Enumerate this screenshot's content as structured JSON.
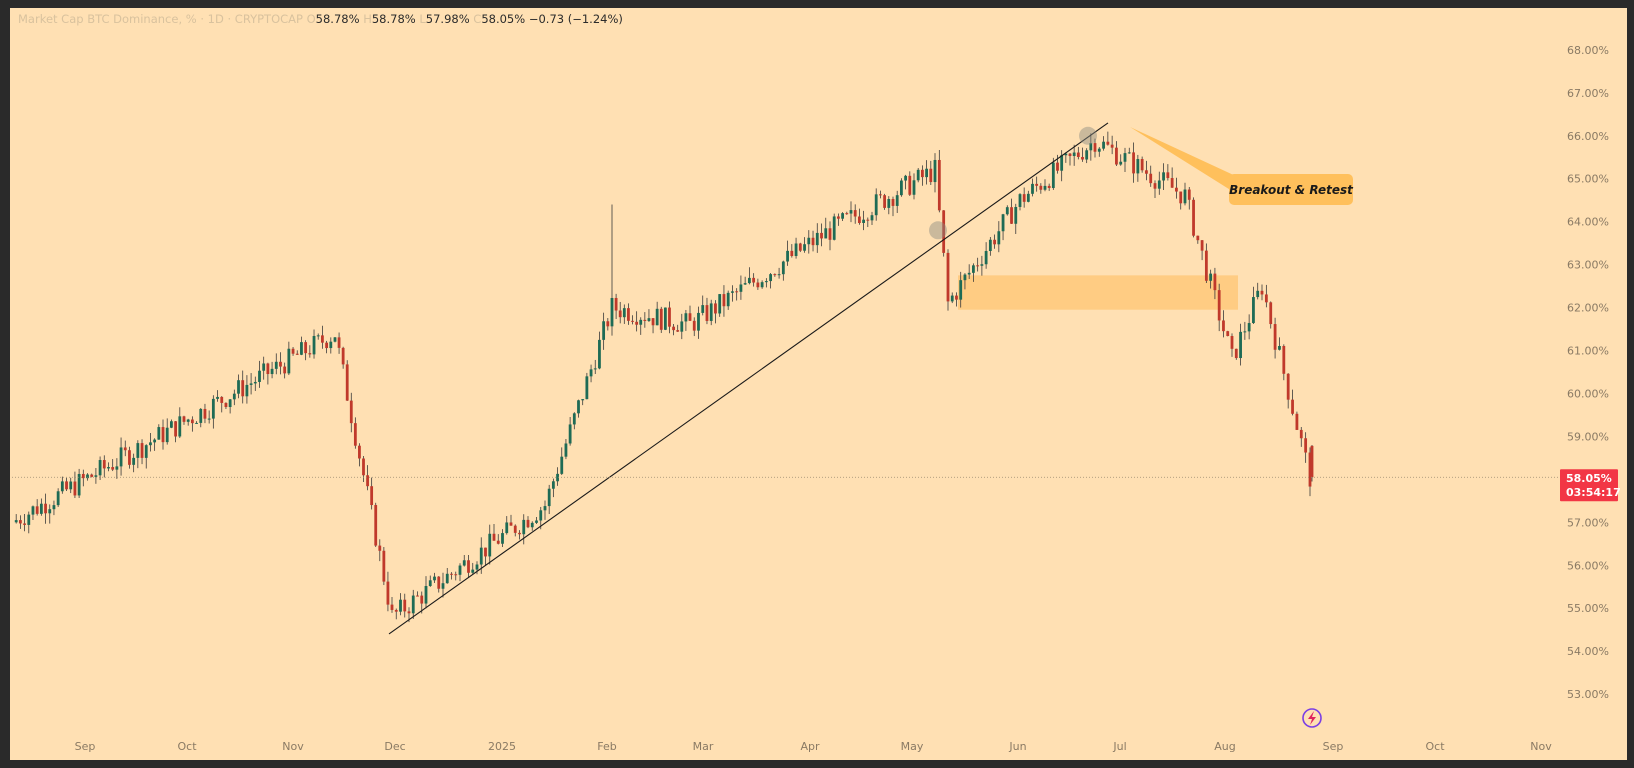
{
  "legend": {
    "symbol": "Market Cap BTC Dominance, % · 1D · CRYPTOCAP",
    "o_label": "O",
    "o_value": "58.78%",
    "h_label": "H",
    "h_value": "58.78%",
    "l_label": "L",
    "l_value": "57.98%",
    "c_label": "C",
    "c_value": "58.05%",
    "change": "−0.73 (−1.24%)"
  },
  "price_tag": {
    "value": "58.05%",
    "countdown": "03:54:17",
    "color": "#f23645"
  },
  "annotation": {
    "text": "Breakout & Retest",
    "color": "#ffc05c"
  },
  "colors": {
    "bull": "#1e6b55",
    "bear": "#c0392b",
    "background": "#ffe0b3",
    "zone": "#ffc87a"
  },
  "icons": {
    "bottom_right": "lightning-bolt-icon"
  },
  "chart_data": {
    "type": "candlestick",
    "title": "Market Cap BTC Dominance, %",
    "ylim": [
      52.7,
      68.3
    ],
    "y_ticks": [
      "68.00%",
      "67.00%",
      "66.00%",
      "65.00%",
      "64.00%",
      "63.00%",
      "62.00%",
      "61.00%",
      "60.00%",
      "59.00%",
      "58.00%",
      "57.00%",
      "56.00%",
      "55.00%",
      "54.00%",
      "53.00%"
    ],
    "x_ticks": [
      "Sep",
      "Oct",
      "Nov",
      "Dec",
      "2025",
      "Feb",
      "Mar",
      "Apr",
      "May",
      "Jun",
      "Jul",
      "Aug",
      "Sep",
      "Oct",
      "Nov"
    ],
    "key_points": [
      {
        "label": "Aug 2024",
        "close": 57.0
      },
      {
        "label": "Nov 2024 high",
        "close": 61.4
      },
      {
        "label": "Dec 2024 low",
        "close": 54.8
      },
      {
        "label": "Jan 2025",
        "close": 57.4
      },
      {
        "label": "Feb 2025 spike",
        "close": 62.0,
        "high": 64.4
      },
      {
        "label": "Mar 2025",
        "close": 61.6
      },
      {
        "label": "Apr 2025",
        "close": 63.8
      },
      {
        "label": "May 2025 peak",
        "close": 65.2
      },
      {
        "label": "mid May 2025",
        "close": 62.1
      },
      {
        "label": "Jun 2025",
        "close": 64.5
      },
      {
        "label": "late Jun 2025 high",
        "close": 65.9
      },
      {
        "label": "Jul 2025",
        "close": 64.6
      },
      {
        "label": "late Jul 2025",
        "close": 60.8
      },
      {
        "label": "Aug 2025 retest",
        "close": 62.5
      },
      {
        "label": "latest",
        "close": 58.05
      }
    ],
    "trendline": {
      "from": {
        "x": "Dec 2024",
        "y": 54.4
      },
      "to": {
        "x": "late Jun 2025",
        "y": 66.3
      }
    },
    "zone": {
      "from": "mid May 2025",
      "to": "Aug 2025",
      "y_low": 61.95,
      "y_high": 62.75
    },
    "last_price": 58.05
  }
}
